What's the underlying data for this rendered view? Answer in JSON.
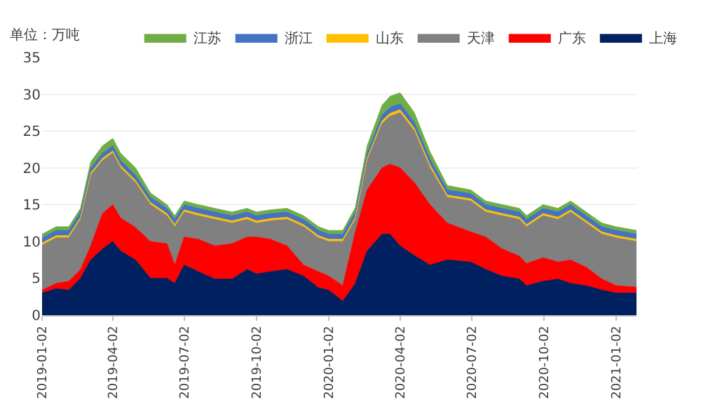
{
  "chart_data": {
    "type": "area",
    "stacked": true,
    "ylabel": "单位：万吨",
    "x": [
      "2019-01-02",
      "2019-01-20",
      "2019-02-05",
      "2019-02-20",
      "2019-03-05",
      "2019-03-20",
      "2019-04-02",
      "2019-04-12",
      "2019-05-01",
      "2019-05-20",
      "2019-06-10",
      "2019-06-20",
      "2019-07-02",
      "2019-07-20",
      "2019-08-10",
      "2019-09-01",
      "2019-09-20",
      "2019-10-02",
      "2019-10-20",
      "2019-11-10",
      "2019-12-01",
      "2019-12-20",
      "2020-01-02",
      "2020-01-20",
      "2020-02-05",
      "2020-02-20",
      "2020-03-10",
      "2020-03-20",
      "2020-04-02",
      "2020-04-20",
      "2020-05-10",
      "2020-06-01",
      "2020-07-01",
      "2020-07-20",
      "2020-08-10",
      "2020-09-01",
      "2020-09-10",
      "2020-10-01",
      "2020-10-20",
      "2020-11-05",
      "2020-11-25",
      "2020-12-15",
      "2021-01-02",
      "2021-01-28"
    ],
    "series": [
      {
        "name": "上海",
        "color": "#002060",
        "values": [
          3,
          3.6,
          3.4,
          5,
          7.5,
          9,
          10,
          8.7,
          7.5,
          5,
          5,
          4.3,
          6.8,
          5.9,
          4.9,
          4.9,
          6.2,
          5.6,
          5.9,
          6.2,
          5.3,
          3.7,
          3.4,
          1.9,
          4.3,
          8.7,
          11,
          11,
          9.4,
          8.1,
          6.8,
          7.5,
          7.2,
          6.2,
          5.3,
          4.9,
          4,
          4.6,
          4.9,
          4.3,
          4,
          3.4,
          3,
          3
        ]
      },
      {
        "name": "广东",
        "color": "#ff0000",
        "values": [
          0.4,
          0.7,
          1.2,
          1.2,
          1.9,
          4.8,
          5,
          4.5,
          4.4,
          5,
          4.7,
          2.5,
          3.8,
          4.4,
          4.5,
          4.8,
          4.4,
          5,
          4.4,
          3.2,
          1.5,
          2.2,
          1.9,
          2.1,
          7,
          8.3,
          9,
          9.5,
          10.6,
          9.9,
          8.2,
          5,
          4.1,
          4.4,
          3.7,
          3.1,
          3,
          3.2,
          2.3,
          3.2,
          2.5,
          1.5,
          1,
          0.8
        ]
      },
      {
        "name": "天津",
        "color": "#808080",
        "values": [
          6.1,
          6.2,
          5.9,
          6.8,
          9.6,
          7.2,
          7,
          6.8,
          6.1,
          5,
          3.8,
          5.2,
          3.4,
          3.2,
          3.6,
          2.8,
          2.4,
          1.9,
          2.5,
          3.6,
          5.2,
          4.6,
          4.7,
          6,
          1.7,
          4,
          6,
          6.5,
          7.5,
          7,
          5,
          3.5,
          4.2,
          3.4,
          4.5,
          5,
          5,
          5.7,
          5.8,
          6.5,
          6,
          6.1,
          6.5,
          6.2
        ]
      },
      {
        "name": "山东",
        "color": "#ffc000",
        "values": [
          0.3,
          0.3,
          0.3,
          0.3,
          0.3,
          0.3,
          0.3,
          0.3,
          0.3,
          0.3,
          0.3,
          0.3,
          0.3,
          0.3,
          0.3,
          0.3,
          0.3,
          0.3,
          0.3,
          0.3,
          0.3,
          0.3,
          0.3,
          0.3,
          0.3,
          0.3,
          0.4,
          0.4,
          0.4,
          0.4,
          0.4,
          0.3,
          0.3,
          0.3,
          0.3,
          0.3,
          0.3,
          0.3,
          0.3,
          0.3,
          0.3,
          0.3,
          0.3,
          0.3
        ]
      },
      {
        "name": "浙江",
        "color": "#4472c4",
        "values": [
          0.7,
          0.7,
          0.7,
          0.7,
          0.7,
          0.7,
          0.7,
          0.7,
          0.7,
          0.7,
          0.7,
          0.7,
          0.7,
          0.7,
          0.7,
          0.7,
          0.7,
          0.7,
          0.7,
          0.7,
          0.7,
          0.7,
          0.7,
          0.7,
          0.7,
          0.7,
          0.8,
          0.8,
          0.8,
          0.8,
          0.8,
          0.7,
          0.7,
          0.7,
          0.7,
          0.7,
          0.7,
          0.7,
          0.7,
          0.7,
          0.7,
          0.7,
          0.7,
          0.7
        ]
      },
      {
        "name": "江苏",
        "color": "#70ad47",
        "values": [
          0.5,
          0.5,
          0.5,
          0.5,
          0.8,
          1,
          1,
          1,
          1,
          0.6,
          0.5,
          0.5,
          0.5,
          0.5,
          0.5,
          0.5,
          0.5,
          0.5,
          0.5,
          0.5,
          0.5,
          0.5,
          0.5,
          0.5,
          0.6,
          1,
          1.3,
          1.5,
          1.5,
          1.3,
          1,
          0.6,
          0.5,
          0.5,
          0.5,
          0.5,
          0.5,
          0.5,
          0.5,
          0.5,
          0.5,
          0.5,
          0.5,
          0.5
        ]
      }
    ],
    "xlim": [
      "2019-01-02",
      "2021-01-28"
    ],
    "xticks": [
      "2019-01-02",
      "2019-04-02",
      "2019-07-02",
      "2019-10-02",
      "2020-01-02",
      "2020-04-02",
      "2020-07-02",
      "2020-10-02",
      "2021-01-02"
    ],
    "ylim": [
      0,
      35
    ],
    "yticks": [
      0,
      5,
      10,
      15,
      20,
      25,
      30,
      35
    ],
    "grid": "y",
    "legend": "top"
  }
}
